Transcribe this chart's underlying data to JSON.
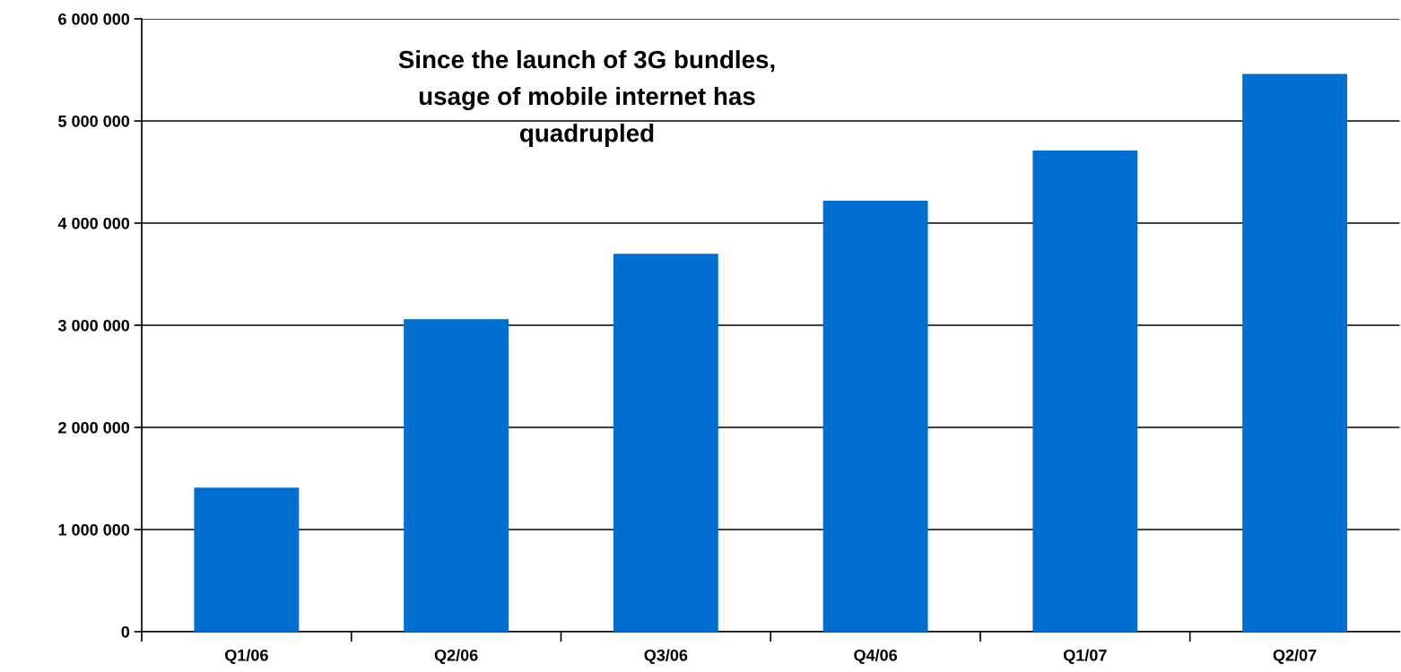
{
  "chart_data": {
    "type": "bar",
    "categories": [
      "Q1/06",
      "Q2/06",
      "Q3/06",
      "Q4/06",
      "Q1/07",
      "Q2/07"
    ],
    "values": [
      1410000,
      3060000,
      3700000,
      4220000,
      4710000,
      5460000
    ],
    "color": "#0070d0",
    "ylim": [
      0,
      6000000
    ],
    "yticks": [
      0,
      {
        "value": 1000000,
        "label": "1 000 000"
      },
      {
        "value": 2000000,
        "label": "2 000 000"
      },
      {
        "value": 3000000,
        "label": "3 000 000"
      },
      {
        "value": 4000000,
        "label": "4 000 000"
      },
      {
        "value": 5000000,
        "label": "5 000 000"
      },
      {
        "value": 6000000,
        "label": "6 000 000"
      }
    ],
    "grid": "y",
    "annotations": [
      "Since the launch of 3G bundles,\nusage of mobile internet has\nquadrupled"
    ]
  }
}
